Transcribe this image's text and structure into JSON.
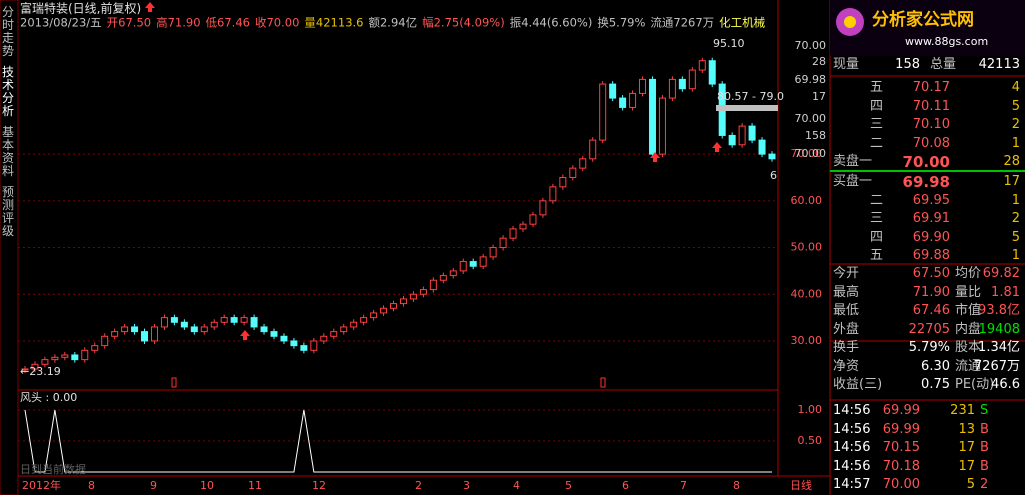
{
  "tabs": [
    "分时走势",
    "技术分析",
    "基本资料",
    "预测评级"
  ],
  "header": {
    "title": "富瑞特装(日线,前复权)",
    "info": [
      {
        "text": "2013/08/23/五",
        "color": "#c0c0c0"
      },
      {
        "text": "开67.50",
        "color": "#ff5454"
      },
      {
        "text": "高71.90",
        "color": "#ff5454"
      },
      {
        "text": "低67.46",
        "color": "#ff5454"
      },
      {
        "text": "收70.00",
        "color": "#ff5454"
      },
      {
        "text": "量42113.6",
        "color": "#e8c000"
      },
      {
        "text": "额2.94亿",
        "color": "#c0c0c0"
      },
      {
        "text": "幅2.75(4.09%)",
        "color": "#ff5454"
      },
      {
        "text": "振4.44(6.60%)",
        "color": "#c0c0c0"
      },
      {
        "text": "换5.79%",
        "color": "#c0c0c0"
      },
      {
        "text": "流通7267万",
        "color": "#c0c0c0"
      },
      {
        "text": "化工机械",
        "color": "#ffff54"
      }
    ]
  },
  "logo": {
    "title": "分析家公式网",
    "url": "www.88gs.com"
  },
  "chart_data": {
    "type": "candlestick",
    "up_color": "#ff4040",
    "down_color": "#54fcfc",
    "closes": [
      24,
      25,
      26,
      26.5,
      27,
      26,
      28,
      29,
      31,
      32,
      33,
      32,
      30,
      33,
      35,
      34,
      33,
      32,
      33,
      34,
      35,
      34,
      35,
      33,
      32,
      31,
      30,
      29,
      28,
      30,
      31,
      32,
      33,
      34,
      35,
      36,
      37,
      38,
      39,
      40,
      41,
      43,
      44,
      45,
      47,
      46,
      48,
      50,
      52,
      54,
      55,
      57,
      60,
      63,
      65,
      67,
      69,
      73,
      85,
      82,
      80,
      83,
      86,
      70,
      82,
      86,
      84,
      88,
      90,
      85,
      74,
      72,
      76,
      73,
      70,
      69
    ],
    "ylim": [
      19.5,
      103
    ],
    "yticks": [
      {
        "value": 70,
        "label": "70.00"
      },
      {
        "value": 60,
        "label": "60.00"
      },
      {
        "value": 50,
        "label": "50.00"
      },
      {
        "value": 40,
        "label": "40.00"
      },
      {
        "value": 30,
        "label": "30.00"
      }
    ],
    "annotations": [
      "95.10",
      "80.57 - 79.0",
      "←23.19",
      "6"
    ],
    "axis_overlays": [
      "70.00",
      "28",
      "69.98",
      "17",
      "70.00",
      "158",
      "70.00"
    ],
    "dates": [
      "2012年",
      "8",
      "9",
      "10",
      "11",
      "12",
      "2",
      "3",
      "4",
      "5",
      "6",
      "7",
      "8",
      "日线"
    ],
    "indicator": {
      "legend": "风头 : 0.00",
      "note": "日到当前数据",
      "values": [
        1,
        0,
        0,
        1,
        0,
        0,
        0,
        0,
        0,
        0,
        0,
        0,
        0,
        0,
        0,
        0,
        0,
        0,
        0,
        0,
        0,
        0,
        0,
        0,
        0,
        0,
        0,
        0,
        1,
        0,
        0,
        0,
        0,
        0,
        0,
        0,
        0,
        0,
        0,
        0,
        0,
        0,
        0,
        0,
        0,
        0,
        0,
        0,
        0,
        0,
        0,
        0,
        0,
        0,
        0,
        0,
        0,
        0,
        0,
        0,
        0,
        0,
        0,
        0,
        0,
        0,
        0,
        0,
        0,
        0,
        0,
        0,
        0,
        0,
        0,
        0
      ],
      "ylim": [
        0,
        1.29
      ],
      "yticks": [
        {
          "value": 1,
          "label": "1.00"
        },
        {
          "value": 0.5,
          "label": "0.50"
        }
      ]
    }
  },
  "panel": {
    "summary": [
      "现量",
      "158",
      "总量",
      "42113"
    ],
    "sell": [
      [
        "五",
        "70.17",
        "4"
      ],
      [
        "四",
        "70.11",
        "5"
      ],
      [
        "三",
        "70.10",
        "2"
      ],
      [
        "二",
        "70.08",
        "1"
      ],
      [
        "卖盘一",
        "70.00",
        "28"
      ]
    ],
    "buy": [
      [
        "买盘一",
        "69.98",
        "17"
      ],
      [
        "二",
        "69.95",
        "1"
      ],
      [
        "三",
        "69.91",
        "2"
      ],
      [
        "四",
        "69.90",
        "5"
      ],
      [
        "五",
        "69.88",
        "1"
      ]
    ],
    "stats": [
      [
        "今开",
        "67.50",
        "均价",
        "69.82"
      ],
      [
        "最高",
        "71.90",
        "量比",
        "1.81"
      ],
      [
        "最低",
        "67.46",
        "市值",
        "93.8亿"
      ],
      [
        "外盘",
        "22705",
        "内盘",
        "19408"
      ],
      [
        "换手",
        "5.79%",
        "股本",
        "1.34亿"
      ],
      [
        "净资",
        "6.30",
        "流通",
        "7267万"
      ],
      [
        "收益(三)",
        "0.75",
        "PE(动)",
        "46.6"
      ]
    ],
    "ticks": [
      [
        "14:56",
        "69.99",
        "231",
        "S"
      ],
      [
        "14:56",
        "69.99",
        "13",
        "B"
      ],
      [
        "14:56",
        "70.15",
        "17",
        "B"
      ],
      [
        "14:56",
        "70.18",
        "17",
        "B"
      ],
      [
        "14:57",
        "70.00",
        "5",
        "2"
      ]
    ]
  }
}
